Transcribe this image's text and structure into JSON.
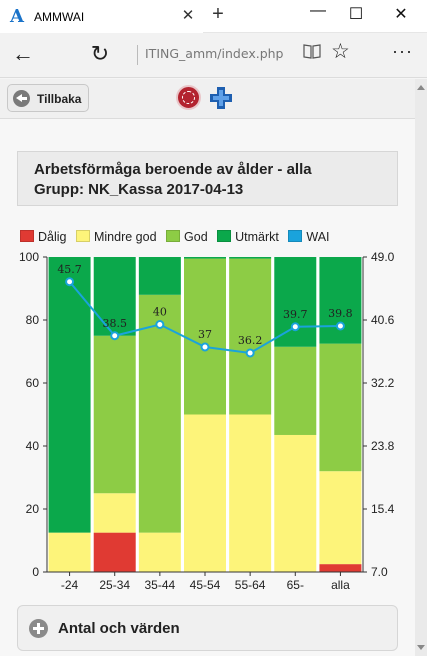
{
  "window": {
    "tab_title": "AMMWAI",
    "tab_logo": "A",
    "icons": {
      "close": "close-icon",
      "new_tab": "plus-icon",
      "minimize": "minimize-icon",
      "maximize": "maximize-icon",
      "window_close": "close-icon"
    }
  },
  "address_bar": {
    "url": "ITING_amm/index.php",
    "icons": {
      "back": "back-arrow-icon",
      "refresh": "refresh-icon",
      "reading_view": "book-icon",
      "favorite": "star-icon",
      "more": "more-icon"
    }
  },
  "header": {
    "back_label": "Tillbaka"
  },
  "chart_title": {
    "line1": "Arbetsförmåga beroende av ålder - alla",
    "line2": "Grupp: NK_Kassa 2017-04-13"
  },
  "colors": {
    "dalig": "#e03a33",
    "mindre_god": "#fdf47a",
    "god": "#8dcc45",
    "utmarkt": "#0ba84b",
    "wai": "#1aa3dc"
  },
  "chart_data": {
    "type": "bar",
    "stacked": true,
    "categories": [
      "-24",
      "25-34",
      "35-44",
      "45-54",
      "55-64",
      "65-",
      "alla"
    ],
    "series": [
      {
        "name": "Dålig",
        "color": "#e03a33",
        "values": [
          0,
          12.5,
          0,
          0,
          0,
          0,
          2.5
        ]
      },
      {
        "name": "Mindre god",
        "color": "#fdf47a",
        "values": [
          12.5,
          12.5,
          12.5,
          50,
          50,
          43.5,
          29.5
        ]
      },
      {
        "name": "God",
        "color": "#8dcc45",
        "values": [
          0,
          50,
          75.5,
          49.5,
          49.5,
          28,
          40.5
        ]
      },
      {
        "name": "Utmärkt",
        "color": "#0ba84b",
        "values": [
          87.5,
          25,
          12,
          0.5,
          0.5,
          28.5,
          27.5
        ]
      }
    ],
    "line_series": {
      "name": "WAI",
      "color": "#1aa3dc",
      "axis": "right",
      "values": [
        45.7,
        38.5,
        40,
        37,
        36.2,
        39.7,
        39.8
      ],
      "labels": [
        "45.7",
        "38.5",
        "40",
        "37",
        "36.2",
        "39.7",
        "39.8"
      ]
    },
    "ylim": [
      0,
      100
    ],
    "y_ticks": [
      "0",
      "20",
      "40",
      "60",
      "80",
      "100"
    ],
    "y2lim": [
      7.0,
      49.0
    ],
    "y2_ticks": [
      "7.0",
      "15.4",
      "23.8",
      "32.2",
      "40.6",
      "49.0"
    ],
    "legend_position": "top-left",
    "grid": false
  },
  "accordion": {
    "label": "Antal och värden"
  }
}
